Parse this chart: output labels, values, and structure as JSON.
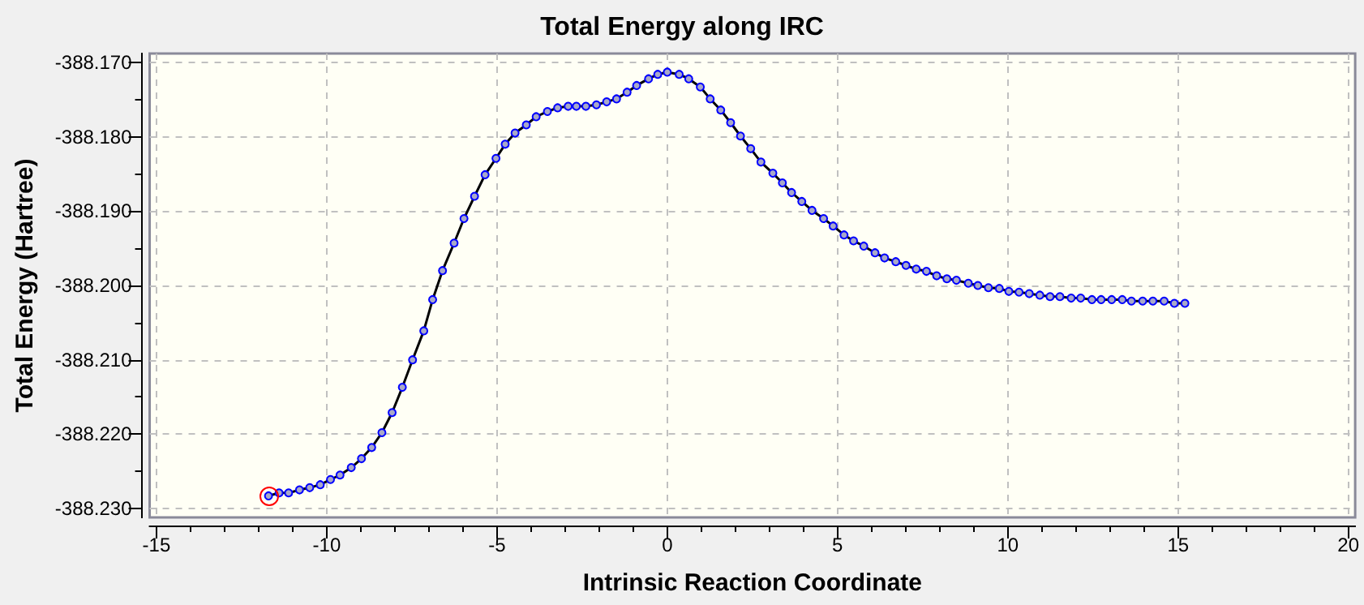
{
  "chart_data": {
    "type": "line",
    "title": "Total Energy along IRC",
    "xlabel": "Intrinsic Reaction Coordinate",
    "ylabel": "Total Energy (Hartree)",
    "x": [
      -11.71,
      -11.4,
      -11.12,
      -10.8,
      -10.5,
      -10.19,
      -9.89,
      -9.61,
      -9.28,
      -8.98,
      -8.68,
      -8.38,
      -8.08,
      -7.78,
      -7.48,
      -7.15,
      -6.89,
      -6.6,
      -6.26,
      -5.97,
      -5.66,
      -5.35,
      -5.03,
      -4.76,
      -4.47,
      -4.14,
      -3.85,
      -3.52,
      -3.22,
      -2.91,
      -2.67,
      -2.39,
      -2.08,
      -1.78,
      -1.49,
      -1.18,
      -0.9,
      -0.55,
      -0.28,
      0,
      0.35,
      0.63,
      0.97,
      1.26,
      1.57,
      1.86,
      2.15,
      2.45,
      2.75,
      3.1,
      3.38,
      3.65,
      3.95,
      4.25,
      4.59,
      4.87,
      5.19,
      5.47,
      5.77,
      6.1,
      6.38,
      6.71,
      7.01,
      7.31,
      7.61,
      7.91,
      8.21,
      8.49,
      8.84,
      9.12,
      9.43,
      9.75,
      10.03,
      10.33,
      10.63,
      10.94,
      11.24,
      11.53,
      11.86,
      12.14,
      12.47,
      12.74,
      13.05,
      13.36,
      13.63,
      13.96,
      14.26,
      14.59,
      14.89,
      15.2
    ],
    "series": [
      {
        "color": "#0000ff",
        "values": [
          -388.2283,
          -388.2279,
          -388.2279,
          -388.2275,
          -388.2272,
          -388.2268,
          -388.2261,
          -388.2255,
          -388.2245,
          -388.2233,
          -388.2218,
          -388.2198,
          -388.2171,
          -388.2137,
          -388.21,
          -388.2061,
          -388.2019,
          -388.198,
          -388.1943,
          -388.191,
          -388.188,
          -388.1851,
          -388.1829,
          -388.181,
          -388.1795,
          -388.1784,
          -388.1773,
          -388.1766,
          -388.1761,
          -388.1759,
          -388.1759,
          -388.1759,
          -388.1757,
          -388.1753,
          -388.1749,
          -388.174,
          -388.1731,
          -388.1722,
          -388.1716,
          -388.1713,
          -388.1716,
          -388.1722,
          -388.1733,
          -388.1749,
          -388.1764,
          -388.1781,
          -388.1799,
          -388.1816,
          -388.1834,
          -388.1849,
          -388.1862,
          -388.1875,
          -388.1887,
          -388.1899,
          -388.191,
          -388.192,
          -388.1932,
          -388.194,
          -388.1947,
          -388.1956,
          -388.1963,
          -388.1968,
          -388.1973,
          -388.1978,
          -388.1981,
          -388.1987,
          -388.1991,
          -388.1993,
          -388.1997,
          -388.2,
          -388.2003,
          -388.2004,
          -388.2008,
          -388.2009,
          -388.2011,
          -388.2013,
          -388.2015,
          -388.2015,
          -388.2017,
          -388.2017,
          -388.2019,
          -388.2019,
          -388.2019,
          -388.2019,
          -388.2021,
          -388.2021,
          -388.2021,
          -388.2021,
          -388.2024,
          -388.2024
        ]
      }
    ],
    "xlim": [
      -15.2,
      20.2
    ],
    "xticks": [
      -15,
      {
        "value": -14,
        "label": null
      },
      {
        "value": -13,
        "label": null
      },
      {
        "value": -12,
        "label": null
      },
      {
        "value": -11,
        "label": null
      },
      -10,
      {
        "value": -9,
        "label": null
      },
      {
        "value": -8,
        "label": null
      },
      {
        "value": -7,
        "label": null
      },
      {
        "value": -6,
        "label": null
      },
      -5,
      {
        "value": -4,
        "label": null
      },
      {
        "value": -3,
        "label": null
      },
      {
        "value": -2,
        "label": null
      },
      {
        "value": -1,
        "label": null
      },
      0,
      {
        "value": 1,
        "label": null
      },
      {
        "value": 2,
        "label": null
      },
      {
        "value": 3,
        "label": null
      },
      {
        "value": 4,
        "label": null
      },
      5,
      {
        "value": 6,
        "label": null
      },
      {
        "value": 7,
        "label": null
      },
      {
        "value": 8,
        "label": null
      },
      {
        "value": 9,
        "label": null
      },
      10,
      {
        "value": 11,
        "label": null
      },
      {
        "value": 12,
        "label": null
      },
      {
        "value": 13,
        "label": null
      },
      {
        "value": 14,
        "label": null
      },
      15,
      {
        "value": 16,
        "label": null
      },
      {
        "value": 17,
        "label": null
      },
      {
        "value": 18,
        "label": null
      },
      {
        "value": 19,
        "label": null
      },
      20
    ],
    "ylim": [
      -388.2312,
      -388.1688
    ],
    "yticks": [
      {
        "value": -388.23,
        "label": "-388.230"
      },
      {
        "value": -388.225,
        "label": null
      },
      {
        "value": -388.22,
        "label": "-388.220"
      },
      {
        "value": -388.215,
        "label": null
      },
      {
        "value": -388.21,
        "label": "-388.210"
      },
      {
        "value": -388.205,
        "label": null
      },
      {
        "value": -388.2,
        "label": "-388.200"
      },
      {
        "value": -388.195,
        "label": null
      },
      {
        "value": -388.19,
        "label": "-388.190"
      },
      {
        "value": -388.185,
        "label": null
      },
      {
        "value": -388.18,
        "label": "-388.180"
      },
      {
        "value": -388.175,
        "label": null
      },
      {
        "value": -388.17,
        "label": "-388.170"
      }
    ],
    "grid": true,
    "marker": "circle",
    "line_style": "solid"
  }
}
